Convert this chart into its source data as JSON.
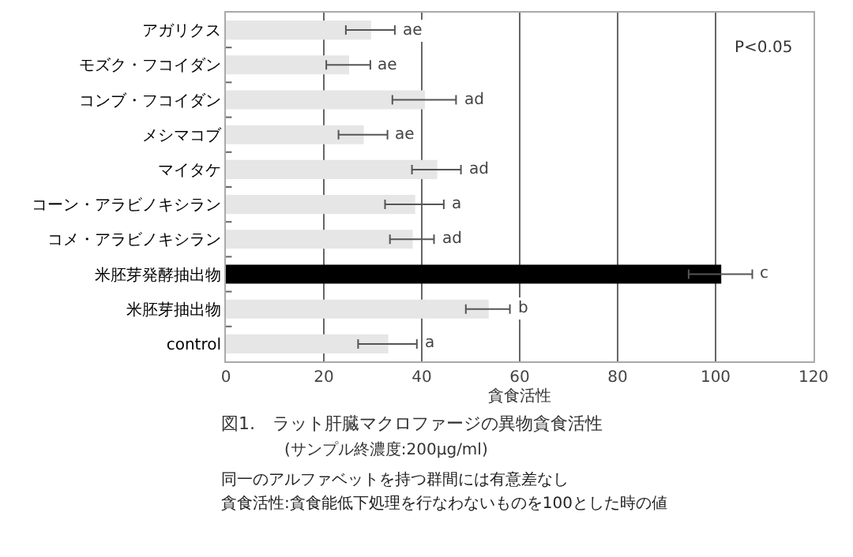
{
  "chart_data": {
    "type": "bar",
    "orientation": "horizontal",
    "title": "図1.　ラット肝臓マクロファージの異物貪食活性",
    "subtitle": "(サンプル終濃度:200μg/ml)",
    "xlabel": "貪食活性",
    "categories": [
      "アガリクス",
      "モズク・フコイダン",
      "コンブ・フコイダン",
      "メシマコブ",
      "マイタケ",
      "コーン・アラビノキシラン",
      "コメ・アラビノキシラン",
      "米胚芽発酵抽出物",
      "米胚芽抽出物",
      "control"
    ],
    "values": [
      29.5,
      25,
      40.5,
      28,
      43,
      38.5,
      38,
      101,
      53.5,
      33
    ],
    "errors": [
      5,
      4.5,
      6.5,
      5,
      5,
      6,
      4.5,
      6.5,
      4.5,
      6
    ],
    "colors": [
      "#e6e6e6",
      "#e6e6e6",
      "#e6e6e6",
      "#e6e6e6",
      "#e6e6e6",
      "#e6e6e6",
      "#e6e6e6",
      "#000000",
      "#e6e6e6",
      "#e6e6e6"
    ],
    "value_labels": [
      "ae",
      "ae",
      "ad",
      "ae",
      "ad",
      "a",
      "ad",
      "c",
      "b",
      "a"
    ],
    "xlim": [
      0,
      120
    ],
    "xticks": [
      0,
      20,
      40,
      60,
      80,
      100,
      120
    ],
    "grid": "x",
    "annotations": [
      "P<0.05",
      "同一のアルファベットを持つ群間には有意差なし",
      "貪食活性:貪食能低下処理を行なわないものを100とした時の値"
    ]
  }
}
